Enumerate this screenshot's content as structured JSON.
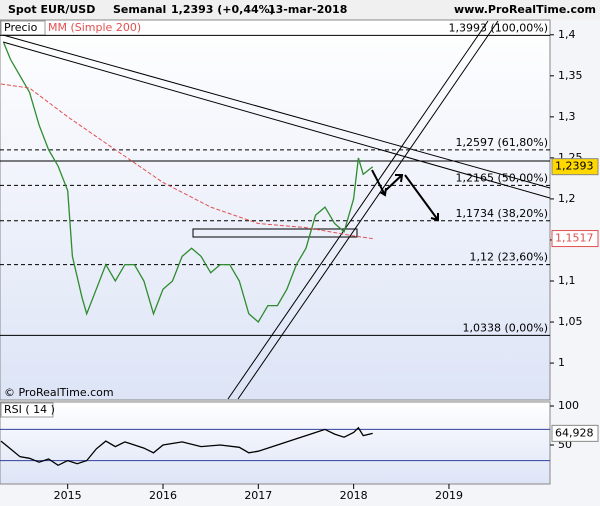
{
  "header": {
    "title": "Spot EUR/USD",
    "period": "Semanal",
    "quote": "1,2393 (+0,44%)",
    "date": "13-mar-2018",
    "site": "www.ProRealTime.com",
    "copyright": "© ProRealTime.com"
  },
  "chart_data": [
    {
      "type": "line",
      "legend": [
        "Precio",
        "MM (Simple 200)"
      ],
      "xlim": [
        2014.29,
        2020.06
      ],
      "ylim": [
        0.955,
        1.418
      ],
      "xticks": [
        {
          "value": 2015,
          "label": "2015"
        },
        {
          "value": 2016,
          "label": "2016"
        },
        {
          "value": 2017,
          "label": "2017"
        },
        {
          "value": 2018,
          "label": "2018"
        },
        {
          "value": 2019,
          "label": "2019"
        }
      ],
      "yticks": [
        {
          "value": 1.4,
          "label": "1,4"
        },
        {
          "value": 1.35,
          "label": "1,35"
        },
        {
          "value": 1.3,
          "label": "1,3"
        },
        {
          "value": 1.25,
          "label": "1,25"
        },
        {
          "value": 1.2,
          "label": "1,2"
        },
        {
          "value": 1.15,
          "label": "1,15"
        },
        {
          "value": 1.1,
          "label": "1,1"
        },
        {
          "value": 1.05,
          "label": "1,05"
        },
        1
      ],
      "series": [
        {
          "name": "Precio",
          "color": "#2e8b2e",
          "x": [
            2014.33,
            2014.4,
            2014.5,
            2014.6,
            2014.7,
            2014.8,
            2014.9,
            2015.0,
            2015.05,
            2015.15,
            2015.2,
            2015.3,
            2015.4,
            2015.5,
            2015.6,
            2015.7,
            2015.8,
            2015.9,
            2016.0,
            2016.1,
            2016.2,
            2016.3,
            2016.4,
            2016.5,
            2016.6,
            2016.7,
            2016.8,
            2016.9,
            2017.0,
            2017.1,
            2017.2,
            2017.3,
            2017.4,
            2017.5,
            2017.6,
            2017.7,
            2017.8,
            2017.9,
            2018.0,
            2018.05,
            2018.1,
            2018.2
          ],
          "values": [
            1.39,
            1.37,
            1.35,
            1.33,
            1.29,
            1.26,
            1.24,
            1.21,
            1.13,
            1.08,
            1.06,
            1.09,
            1.12,
            1.1,
            1.12,
            1.12,
            1.1,
            1.06,
            1.09,
            1.1,
            1.13,
            1.14,
            1.13,
            1.11,
            1.12,
            1.12,
            1.1,
            1.06,
            1.05,
            1.07,
            1.07,
            1.09,
            1.12,
            1.14,
            1.18,
            1.19,
            1.17,
            1.16,
            1.2,
            1.25,
            1.23,
            1.2393
          ],
          "last_label": "1,2393"
        },
        {
          "name": "MM (Simple 200)",
          "color": "#e05050",
          "x": [
            2014.3,
            2014.6,
            2015.0,
            2015.5,
            2016.0,
            2016.5,
            2017.0,
            2017.5,
            2018.0,
            2018.2
          ],
          "values": [
            1.34,
            1.335,
            1.3,
            1.26,
            1.22,
            1.19,
            1.17,
            1.165,
            1.155,
            1.1517
          ],
          "last_label": "1,1517"
        }
      ],
      "levels": [
        {
          "value": 1.3993,
          "label": "1,3993 (100,00%)"
        },
        {
          "value": 1.2597,
          "label": "1,2597 (61,80%)"
        },
        {
          "value": 1.2165,
          "label": "1,2165 (50,00%)"
        },
        {
          "value": 1.1734,
          "label": "1,1734 (38,20%)"
        },
        {
          "value": 1.12,
          "label": "1,12 (23,60%)"
        },
        {
          "value": 1.0338,
          "label": "1,0338 (0,00%)"
        }
      ]
    },
    {
      "type": "line",
      "title": "RSI ( 14 )",
      "xlim": [
        2014.29,
        2020.06
      ],
      "ylim": [
        0,
        100
      ],
      "yticks": [
        100,
        50
      ],
      "series": [
        {
          "name": "RSI ( 14 )",
          "color": "#000000",
          "x": [
            2014.3,
            2014.4,
            2014.5,
            2014.6,
            2014.7,
            2014.8,
            2014.9,
            2015.0,
            2015.1,
            2015.2,
            2015.3,
            2015.4,
            2015.5,
            2015.6,
            2015.7,
            2015.8,
            2015.9,
            2016.0,
            2016.2,
            2016.4,
            2016.6,
            2016.8,
            2016.9,
            2017.0,
            2017.2,
            2017.4,
            2017.5,
            2017.6,
            2017.7,
            2017.8,
            2017.9,
            2018.0,
            2018.05,
            2018.1,
            2018.2
          ],
          "values": [
            55,
            45,
            35,
            33,
            28,
            32,
            24,
            30,
            26,
            30,
            45,
            55,
            48,
            54,
            50,
            46,
            40,
            50,
            54,
            48,
            50,
            47,
            40,
            42,
            50,
            58,
            62,
            66,
            70,
            64,
            60,
            66,
            72,
            62,
            64.928
          ],
          "last_label": "64,928"
        }
      ]
    }
  ]
}
